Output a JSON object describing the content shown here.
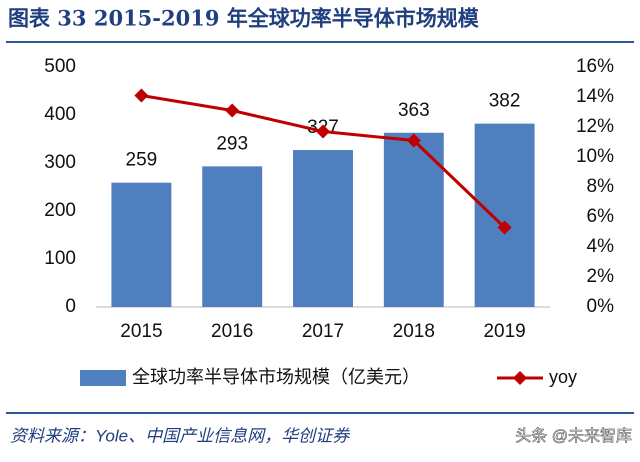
{
  "chart_data": {
    "type": "bar",
    "title": "图表 33  2015-2019 年全球功率半导体市场规模",
    "categories": [
      "2015",
      "2016",
      "2017",
      "2018",
      "2019"
    ],
    "series": [
      {
        "name": "全球功率半导体市场规模（亿美元）",
        "type": "bar",
        "color": "#4f7fbf",
        "values": [
          259,
          293,
          327,
          363,
          382
        ]
      },
      {
        "name": "yoy",
        "type": "line",
        "axis": "y2",
        "color": "#c00000",
        "values": [
          14.1,
          13.1,
          11.7,
          11.1,
          5.3
        ]
      }
    ],
    "ylim": [
      0,
      500
    ],
    "yticks": [
      0,
      100,
      200,
      300,
      400,
      500
    ],
    "y2lim": [
      0,
      16
    ],
    "y2ticks": [
      {
        "value": 0,
        "label": "0%"
      },
      {
        "value": 2,
        "label": "2%"
      },
      {
        "value": 4,
        "label": "4%"
      },
      {
        "value": 6,
        "label": "6%"
      },
      {
        "value": 8,
        "label": "8%"
      },
      {
        "value": 10,
        "label": "10%"
      },
      {
        "value": 12,
        "label": "12%"
      },
      {
        "value": 14,
        "label": "14%"
      },
      {
        "value": 16,
        "label": "16%"
      }
    ],
    "legend": "bottom"
  },
  "source": "资料来源：Yole、中国产业信息网，华创证券",
  "watermark": "头条 @未来智库"
}
